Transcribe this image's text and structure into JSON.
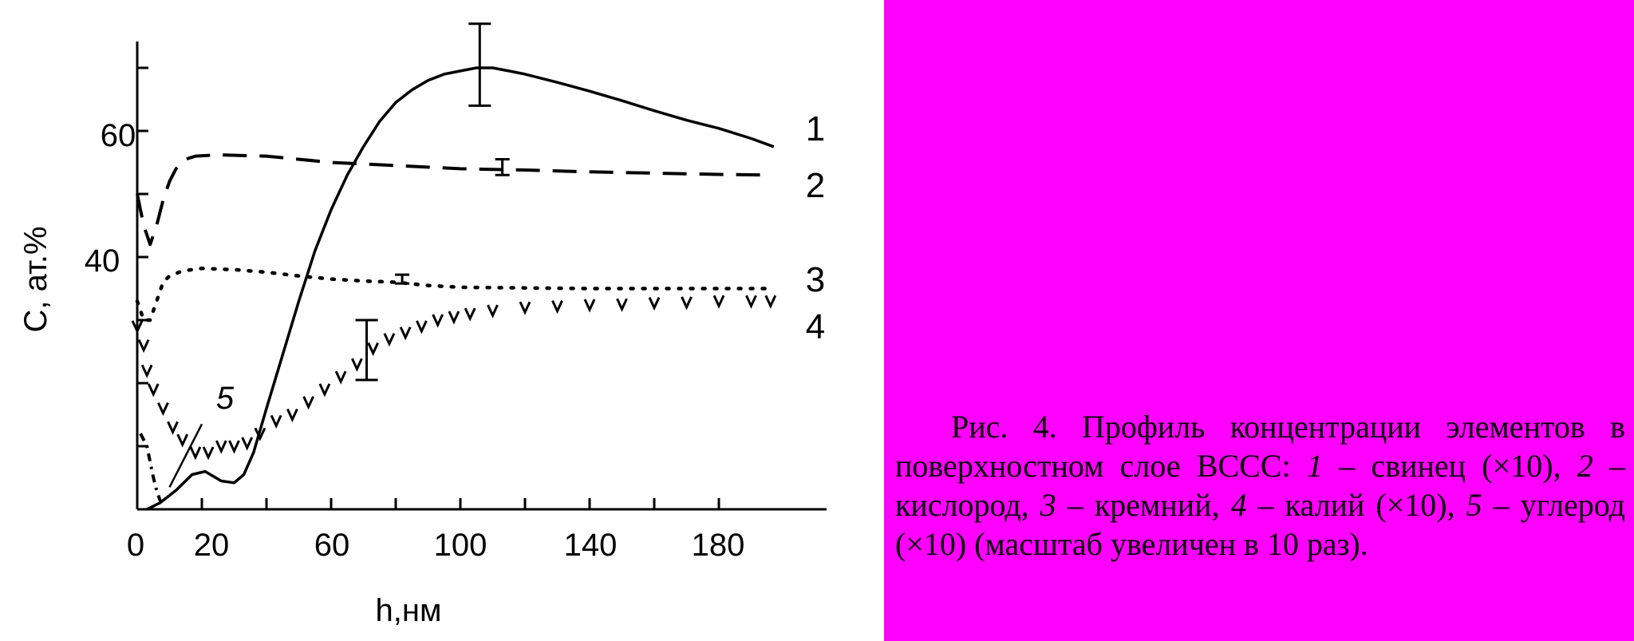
{
  "chart_data": {
    "type": "line",
    "xlabel": "h,нм",
    "ylabel": "C, ат.%",
    "xlim": [
      0,
      200
    ],
    "ylim": [
      0,
      72
    ],
    "x_ticks": [
      0,
      20,
      60,
      100,
      140,
      180
    ],
    "x_minor_ticks": [
      40,
      80,
      120,
      160
    ],
    "y_ticks": [
      40,
      60
    ],
    "y_minor_ticks": [
      10,
      20,
      30,
      50,
      70
    ],
    "grid": false,
    "legend": "none",
    "series": [
      {
        "name": "1",
        "style": "solid",
        "points": [
          [
            3,
            0
          ],
          [
            7,
            1
          ],
          [
            12,
            3
          ],
          [
            17,
            5.5
          ],
          [
            21,
            6
          ],
          [
            26,
            4.5
          ],
          [
            30,
            4.2
          ],
          [
            33,
            5.5
          ],
          [
            36,
            9
          ],
          [
            40,
            16
          ],
          [
            45,
            24.5
          ],
          [
            50,
            33
          ],
          [
            55,
            41
          ],
          [
            60,
            47.5
          ],
          [
            65,
            53
          ],
          [
            70,
            57.5
          ],
          [
            75,
            61.5
          ],
          [
            80,
            64.5
          ],
          [
            85,
            66.5
          ],
          [
            90,
            68
          ],
          [
            95,
            69
          ],
          [
            100,
            69.5
          ],
          [
            105,
            70
          ],
          [
            110,
            70
          ],
          [
            115,
            69.5
          ],
          [
            120,
            69
          ],
          [
            130,
            67.7
          ],
          [
            140,
            66.3
          ],
          [
            150,
            64.8
          ],
          [
            160,
            63.2
          ],
          [
            170,
            61.7
          ],
          [
            180,
            60.4
          ],
          [
            190,
            58.8
          ],
          [
            197,
            57.5
          ]
        ],
        "error_bar": {
          "x": 106,
          "y_low": 64,
          "y_high": 77
        }
      },
      {
        "name": "2",
        "style": "dashed",
        "points": [
          [
            0,
            50
          ],
          [
            2,
            45
          ],
          [
            4,
            42
          ],
          [
            6,
            45
          ],
          [
            8,
            49
          ],
          [
            10,
            52
          ],
          [
            12,
            54
          ],
          [
            15,
            55.5
          ],
          [
            18,
            56
          ],
          [
            25,
            56.2
          ],
          [
            40,
            56
          ],
          [
            60,
            55
          ],
          [
            80,
            54.5
          ],
          [
            100,
            54
          ],
          [
            120,
            53.8
          ],
          [
            140,
            53.5
          ],
          [
            160,
            53.3
          ],
          [
            180,
            53.1
          ],
          [
            196,
            53
          ]
        ],
        "error_bar": {
          "x": 113,
          "y_low": 53,
          "y_high": 55.5
        }
      },
      {
        "name": "3",
        "style": "dotted",
        "points": [
          [
            0,
            33
          ],
          [
            2,
            30
          ],
          [
            4,
            30
          ],
          [
            6,
            33
          ],
          [
            8,
            36
          ],
          [
            10,
            37
          ],
          [
            14,
            37.8
          ],
          [
            20,
            38.2
          ],
          [
            30,
            38
          ],
          [
            40,
            37.6
          ],
          [
            50,
            37
          ],
          [
            60,
            36.5
          ],
          [
            70,
            36.2
          ],
          [
            80,
            36
          ],
          [
            90,
            35.5
          ],
          [
            100,
            35.2
          ],
          [
            120,
            35.1
          ],
          [
            140,
            35
          ],
          [
            160,
            35
          ],
          [
            180,
            35
          ],
          [
            196,
            35
          ]
        ],
        "error_bar": {
          "x": 82,
          "y_low": 35.8,
          "y_high": 37.2
        }
      },
      {
        "name": "4",
        "style": "marker-v",
        "points": [
          [
            0,
            29
          ],
          [
            2,
            26
          ],
          [
            3,
            22
          ],
          [
            5,
            19
          ],
          [
            8,
            16
          ],
          [
            11,
            13
          ],
          [
            14,
            11
          ],
          [
            18,
            9
          ],
          [
            22,
            9
          ],
          [
            26,
            10
          ],
          [
            30,
            10
          ],
          [
            34,
            10.5
          ],
          [
            38,
            12
          ],
          [
            43,
            14
          ],
          [
            48,
            15
          ],
          [
            53,
            17
          ],
          [
            58,
            19
          ],
          [
            63,
            21
          ],
          [
            68,
            23
          ],
          [
            73,
            25.5
          ],
          [
            78,
            27
          ],
          [
            83,
            28
          ],
          [
            88,
            29
          ],
          [
            93,
            30
          ],
          [
            98,
            30.5
          ],
          [
            103,
            31
          ],
          [
            110,
            31.5
          ],
          [
            120,
            32
          ],
          [
            130,
            32.2
          ],
          [
            140,
            32.4
          ],
          [
            150,
            32.5
          ],
          [
            160,
            32.7
          ],
          [
            170,
            32.8
          ],
          [
            180,
            33
          ],
          [
            190,
            33
          ],
          [
            196,
            33
          ]
        ],
        "error_bar": {
          "x": 71,
          "y_low": 20.5,
          "y_high": 30
        }
      },
      {
        "name": "5",
        "style": "dash-dot",
        "points": [
          [
            1,
            12
          ],
          [
            3,
            10
          ],
          [
            4,
            7.5
          ],
          [
            5,
            5
          ],
          [
            6,
            3
          ],
          [
            7,
            1.5
          ],
          [
            8,
            0.5
          ]
        ],
        "label_line": [
          [
            10,
            3.5
          ],
          [
            20,
            13.5
          ]
        ]
      }
    ]
  },
  "labels": {
    "tick_0": "0",
    "tick_20": "20",
    "tick_60": "60",
    "tick_100": "100",
    "tick_140": "140",
    "tick_180": "180",
    "ytick_40": "40",
    "ytick_60": "60",
    "curve_1": "1",
    "curve_2": "2",
    "curve_3": "3",
    "curve_4": "4",
    "curve_5": "5",
    "xlabel": "h,нм",
    "ylabel": "C, ат.%"
  },
  "caption": {
    "text_a": "Рис. 4. Профиль концентрации элементов в поверхностном слое ВССС: ",
    "i1": "1",
    "text_b": " – свинец (×10), ",
    "i2": "2",
    "text_c": " – кислород, ",
    "i3": "3",
    "text_d": " – кремний, ",
    "i4": "4",
    "text_e": " – калий (×10), ",
    "i5": "5",
    "text_f": " – углерод (×10) (масштаб увеличен в 10 раз)."
  },
  "colors": {
    "caption_background": "#ff00ff",
    "plot_background": "#ffffff",
    "ink": "#000000"
  }
}
